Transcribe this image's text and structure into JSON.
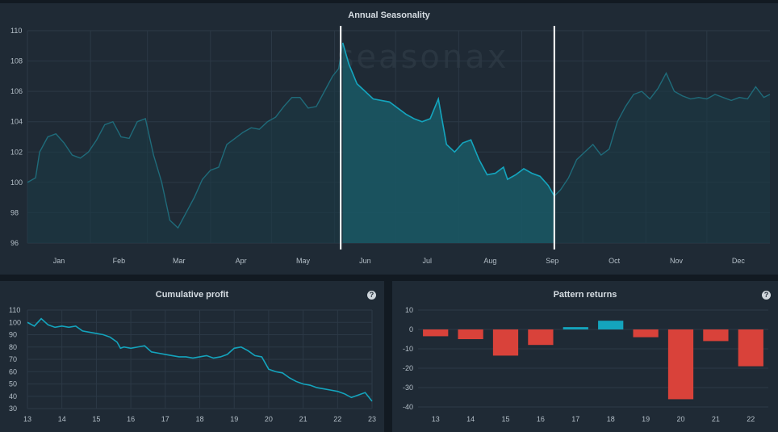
{
  "colors": {
    "background": "#121a22",
    "panel": "#1f2a35",
    "grid": "#2c3946",
    "line": "#14a4bd",
    "line_dim": "#1f6b7a",
    "positive_bar": "#14a4bd",
    "negative_bar": "#d9423a"
  },
  "watermark": "seasonax",
  "chart_data": [
    {
      "type": "line",
      "title": "Annual Seasonality",
      "x_tick_labels": [
        "Jan",
        "Feb",
        "Mar",
        "Apr",
        "May",
        "Jun",
        "Jul",
        "Aug",
        "Sep",
        "Oct",
        "Nov",
        "Dec"
      ],
      "y_ticks": [
        96,
        98,
        100,
        102,
        104,
        106,
        108,
        110
      ],
      "ylim": [
        96,
        110
      ],
      "xlim": [
        0,
        365
      ],
      "highlight_range": {
        "start_day": 154,
        "end_day": 259
      },
      "grid": true,
      "series": [
        {
          "x": [
            0,
            4,
            6,
            10,
            14,
            18,
            22,
            26,
            30,
            34,
            38,
            42,
            46,
            50,
            54,
            58,
            62,
            66,
            70,
            74,
            78,
            82,
            86,
            90,
            94,
            98,
            102,
            106,
            110,
            114,
            118,
            122,
            126,
            130,
            134,
            138,
            142,
            146,
            150,
            153,
            155,
            158,
            162,
            166,
            170,
            174,
            178,
            182,
            186,
            190,
            194,
            198,
            202,
            204,
            206,
            210,
            214,
            218,
            222,
            226,
            230,
            234,
            236,
            240,
            244,
            248,
            252,
            256,
            259,
            262,
            266,
            270,
            274,
            278,
            282,
            286,
            290,
            294,
            298,
            302,
            306,
            310,
            314,
            318,
            322,
            326,
            330,
            334,
            338,
            342,
            346,
            350,
            354,
            358,
            362,
            365
          ],
          "values": [
            100.0,
            100.3,
            102.0,
            103.0,
            103.2,
            102.6,
            101.8,
            101.6,
            102.0,
            102.8,
            103.8,
            104.0,
            103.0,
            102.9,
            104.0,
            104.2,
            101.8,
            100.0,
            97.5,
            97.0,
            98.0,
            99.0,
            100.2,
            100.8,
            101.0,
            102.5,
            102.9,
            103.3,
            103.6,
            103.5,
            104.0,
            104.3,
            105.0,
            105.6,
            105.6,
            104.9,
            105.0,
            106.0,
            107.0,
            107.5,
            109.2,
            107.8,
            106.5,
            106.0,
            105.5,
            105.4,
            105.3,
            104.9,
            104.5,
            104.2,
            104.0,
            104.2,
            105.5,
            104.0,
            102.5,
            102.0,
            102.6,
            102.8,
            101.5,
            100.5,
            100.6,
            101.0,
            100.2,
            100.5,
            100.9,
            100.6,
            100.4,
            99.8,
            99.1,
            99.5,
            100.3,
            101.5,
            102.0,
            102.5,
            101.8,
            102.2,
            104.0,
            105.0,
            105.8,
            106.0,
            105.5,
            106.2,
            107.2,
            106.0,
            105.7,
            105.5,
            105.6,
            105.5,
            105.8,
            105.6,
            105.4,
            105.6,
            105.5,
            106.3,
            105.6,
            105.8
          ]
        }
      ]
    },
    {
      "type": "line",
      "title": "Cumulative profit",
      "x_tick_labels": [
        "13",
        "14",
        "15",
        "16",
        "17",
        "18",
        "19",
        "20",
        "21",
        "22",
        "23"
      ],
      "y_ticks": [
        30,
        40,
        50,
        60,
        70,
        80,
        90,
        100,
        110
      ],
      "xlim": [
        13,
        23
      ],
      "ylim": [
        30,
        110
      ],
      "grid": true,
      "series": [
        {
          "x": [
            13.0,
            13.2,
            13.4,
            13.6,
            13.8,
            14.0,
            14.2,
            14.4,
            14.6,
            14.8,
            15.0,
            15.2,
            15.4,
            15.6,
            15.7,
            15.8,
            16.0,
            16.2,
            16.4,
            16.6,
            16.8,
            17.0,
            17.2,
            17.4,
            17.6,
            17.8,
            18.0,
            18.2,
            18.4,
            18.6,
            18.8,
            19.0,
            19.2,
            19.4,
            19.6,
            19.8,
            20.0,
            20.2,
            20.4,
            20.6,
            20.8,
            21.0,
            21.2,
            21.4,
            21.6,
            21.8,
            22.0,
            22.2,
            22.4,
            22.6,
            22.8,
            23.0
          ],
          "values": [
            100,
            97,
            103,
            98,
            96,
            97,
            96,
            97,
            93,
            92,
            91,
            90,
            88,
            84,
            79,
            80,
            79,
            80,
            81,
            76,
            75,
            74,
            73,
            72,
            72,
            71,
            72,
            73,
            71,
            72,
            74,
            79,
            80,
            77,
            73,
            72,
            62,
            60,
            59,
            55,
            52,
            50,
            49,
            47,
            46,
            45,
            44,
            42,
            39,
            41,
            43,
            36
          ]
        }
      ]
    },
    {
      "type": "bar",
      "title": "Pattern returns",
      "categories": [
        "13",
        "14",
        "15",
        "16",
        "17",
        "18",
        "19",
        "20",
        "21",
        "22"
      ],
      "values": [
        -3.5,
        -5,
        -13.5,
        -8,
        1.2,
        4.5,
        -4,
        -36,
        -6,
        -19
      ],
      "y_ticks": [
        -40,
        -30,
        -20,
        -10,
        0,
        10
      ],
      "ylim": [
        -40,
        10
      ],
      "grid": true
    }
  ]
}
